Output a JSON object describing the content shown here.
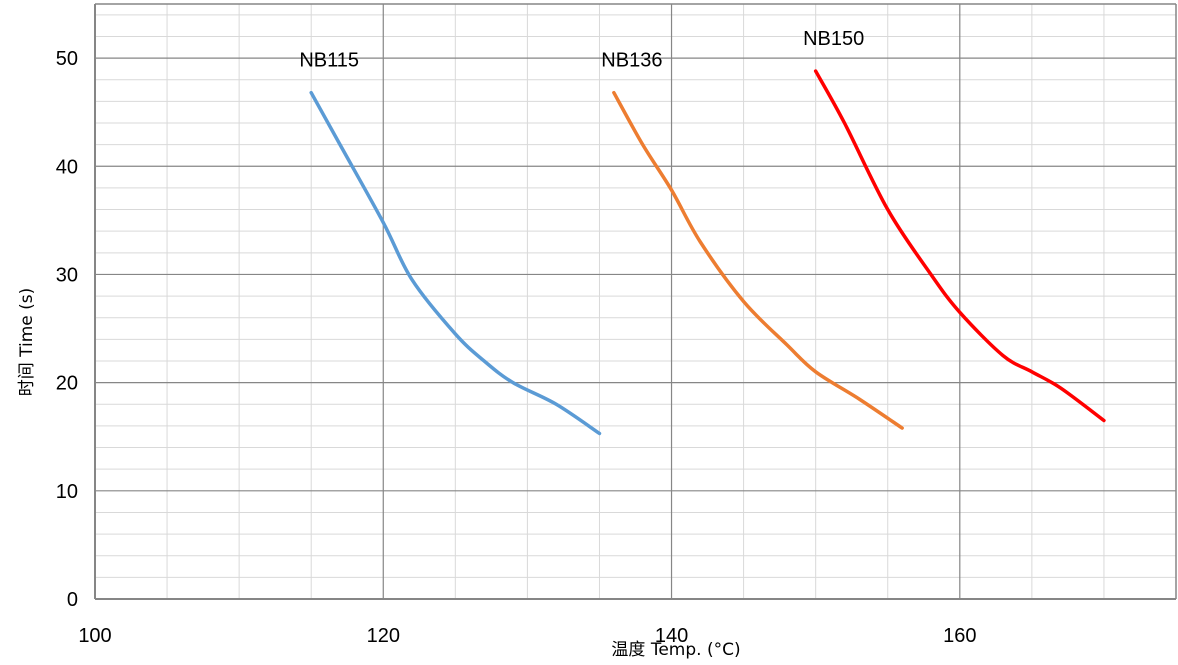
{
  "chart_data": {
    "type": "line",
    "title": "",
    "xlabel": "温度 Temp. (°C)",
    "ylabel": "时间 Time (s)",
    "xlim": [
      100,
      175
    ],
    "ylim": [
      0,
      55
    ],
    "x_major_ticks": [
      100,
      120,
      140,
      160
    ],
    "y_major_ticks": [
      0,
      10,
      20,
      30,
      40,
      50
    ],
    "x_minor_step": 5,
    "y_minor_step": 2,
    "grid": true,
    "series": [
      {
        "name": "NB115",
        "color": "#5B9BD5",
        "points": [
          [
            115,
            46.8
          ],
          [
            117,
            42
          ],
          [
            120,
            34.8
          ],
          [
            122,
            29.5
          ],
          [
            125,
            24.5
          ],
          [
            127,
            22
          ],
          [
            129,
            20
          ],
          [
            132,
            18
          ],
          [
            135,
            15.3
          ]
        ]
      },
      {
        "name": "NB136",
        "color": "#ED7D31",
        "points": [
          [
            136,
            46.8
          ],
          [
            138,
            42
          ],
          [
            140,
            37.8
          ],
          [
            142,
            33
          ],
          [
            145,
            27.5
          ],
          [
            148,
            23.5
          ],
          [
            150,
            21
          ],
          [
            153,
            18.5
          ],
          [
            156,
            15.8
          ]
        ]
      },
      {
        "name": "NB150",
        "color": "#FF0000",
        "points": [
          [
            150,
            48.8
          ],
          [
            152,
            44
          ],
          [
            155,
            36
          ],
          [
            158,
            30
          ],
          [
            160,
            26.5
          ],
          [
            163,
            22.5
          ],
          [
            165,
            21
          ],
          [
            167,
            19.5
          ],
          [
            170,
            16.5
          ]
        ]
      }
    ]
  }
}
